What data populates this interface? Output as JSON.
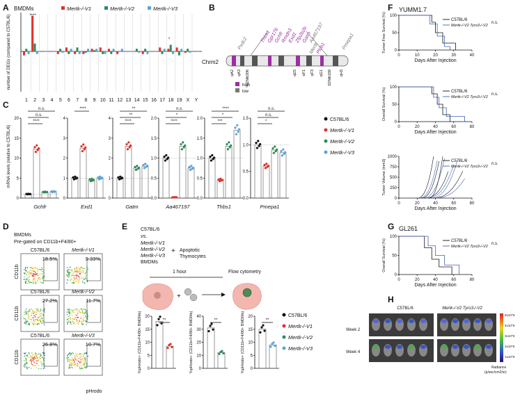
{
  "panels": {
    "A": "A",
    "B": "B",
    "C": "C",
    "D": "D",
    "E": "E",
    "F": "F",
    "G": "G",
    "H": "H"
  },
  "colors": {
    "wt": "#111111",
    "v1": "#e0302a",
    "v2": "#2e8b57",
    "v3": "#5ba3d9",
    "purple": "#9b2fa0",
    "gray": "#777777"
  },
  "legend": {
    "wt": "C57BL/6",
    "v1": "Mertk-/-V1",
    "v2": "Mertk-/-V2",
    "v3": "Mertk-/-V3"
  },
  "panelA": {
    "title": "BMDMs",
    "ylabel": "number of DEGs (compared to C57BL/6)",
    "chart_data": {
      "type": "bar",
      "title": "BMDMs",
      "ylabel": "number of DEGs (compared to C57BL/6)",
      "categories": [
        "1",
        "2",
        "3",
        "4",
        "5",
        "6",
        "7",
        "8",
        "9",
        "10",
        "11",
        "12",
        "13",
        "14",
        "15",
        "16",
        "17",
        "18",
        "19",
        "X",
        "Y"
      ],
      "series": [
        {
          "name": "Mertk-/-V1",
          "values": [
            -3,
            27,
            0,
            0,
            -2,
            3,
            -2,
            -2,
            2,
            3,
            2,
            -2,
            0,
            0,
            -2,
            0,
            3,
            2,
            3,
            -1,
            0
          ]
        },
        {
          "name": "Mertk-/-V2",
          "values": [
            2,
            6,
            0,
            0,
            2,
            -2,
            3,
            -1,
            1,
            -2,
            -2,
            0,
            0,
            2,
            2,
            0,
            -2,
            5,
            -3,
            2,
            0
          ]
        },
        {
          "name": "Mertk-/-V3",
          "values": [
            -2,
            -2,
            0,
            0,
            -1,
            2,
            -2,
            2,
            2,
            -2,
            2,
            2,
            0,
            -1,
            -2,
            0,
            2,
            -2,
            2,
            -1,
            0
          ]
        }
      ],
      "annotations": [
        "****",
        "*"
      ]
    }
  },
  "panelB": {
    "chrom": "Chrm2",
    "genes_top": [
      "Pxdc2",
      "Thbs1",
      "Gpr176",
      "Gchfr",
      "Rmdn3",
      "Exd1",
      "Zfp2b2b",
      "Gatm",
      "Aa467197",
      "Mertk",
      "Plcb1",
      "Pmepa1"
    ],
    "bands": [
      "qA2",
      "qA3",
      "D2Mit206",
      "qE5",
      "qF1",
      "qF3",
      "qG1",
      "D2Mit168",
      "qH3"
    ],
    "legend": [
      "high",
      "low"
    ]
  },
  "panelC": {
    "ylabel": "mRNA levels (relative to C57BL/6)",
    "genes": [
      "Gchfr",
      "Exd1",
      "Gatm",
      "Aa467197",
      "Thbs1",
      "Pmepa1"
    ],
    "legend_title": "",
    "chart_data": [
      {
        "type": "bar",
        "gene": "Gchfr",
        "ylim": [
          0,
          20
        ],
        "ticks": [
          "0",
          "5",
          "10",
          "15",
          "20"
        ],
        "values": [
          1,
          12.3,
          1.5,
          1.6
        ],
        "sig": [
          "n.s.",
          "n.s.",
          "****"
        ]
      },
      {
        "type": "bar",
        "gene": "Exd1",
        "ylim": [
          0,
          4
        ],
        "ticks": [
          "0",
          "1",
          "2",
          "3",
          "4"
        ],
        "values": [
          1,
          2.5,
          0.9,
          1.0
        ],
        "sig": [
          "****"
        ]
      },
      {
        "type": "bar",
        "gene": "Gatm",
        "ylim": [
          0,
          4
        ],
        "ticks": [
          "0",
          "1",
          "2",
          "3",
          "4"
        ],
        "values": [
          1,
          2.6,
          1.5,
          1.6
        ],
        "sig": [
          "**",
          "**",
          "****"
        ]
      },
      {
        "type": "bar",
        "gene": "Aa467197",
        "ylim": [
          0,
          2
        ],
        "ticks": [
          "0.0",
          "0.5",
          "1.0",
          "1.5",
          "2.0"
        ],
        "values": [
          1,
          0.02,
          1.3,
          0.75
        ],
        "sig": [
          "n.s.",
          "*",
          "****"
        ]
      },
      {
        "type": "bar",
        "gene": "Thbs1",
        "ylim": [
          0,
          2
        ],
        "ticks": [
          "0.0",
          "0.5",
          "1.0",
          "1.5",
          "2.0"
        ],
        "values": [
          1,
          0.45,
          1.3,
          1.7
        ],
        "sig": [
          "****",
          "*",
          "***"
        ]
      },
      {
        "type": "bar",
        "gene": "Pmepa1",
        "ylim": [
          0,
          1.5
        ],
        "ticks": [
          "0.0",
          "0.5",
          "1.0",
          "1.5"
        ],
        "values": [
          1,
          0.6,
          0.9,
          0.85
        ],
        "sig": [
          "n.s.",
          "n.s.",
          "*"
        ]
      }
    ]
  },
  "panelD": {
    "title1": "BMDMs",
    "title2": "Pre-gated on CD11b+F4/80+",
    "ylabel": "CD11b",
    "xlabel": "pHrodo",
    "plots": [
      {
        "label": "C57BL/6",
        "pct": "18.5%"
      },
      {
        "label": "Mertk-/-V1",
        "pct": "9.33%"
      },
      {
        "label": "C57BL/6",
        "pct": "27.2%"
      },
      {
        "label": "Mertk-/-V2",
        "pct": "11.7%"
      },
      {
        "label": "C57BL/6",
        "pct": "26.8%"
      },
      {
        "label": "Mertk-/-V3",
        "pct": "10.7%"
      }
    ]
  },
  "panelE": {
    "lines": [
      "C57BL/6",
      "vs.",
      "Mertk-/-V1",
      "Mertk-/-V2",
      "Mertk-/-V3",
      "BMDMs"
    ],
    "plus": "+",
    "apoptotic": "Apoptotic",
    "thymocytes": "Thymocytes",
    "time": "1 hour",
    "flow": "Flow cytometry",
    "ylabel": "%pHrodo+ (CD11b+F4/80+ BMDMs)",
    "chart_data": [
      {
        "type": "bar",
        "ylim": [
          0,
          20
        ],
        "ticks": [
          "0",
          "5",
          "10",
          "15",
          "20"
        ],
        "values": [
          18,
          8.5
        ],
        "sig": "**"
      },
      {
        "type": "bar",
        "ylim": [
          0,
          40
        ],
        "ticks": [
          "0",
          "10",
          "20",
          "30",
          "40"
        ],
        "values": [
          31,
          12
        ],
        "sig": "**"
      },
      {
        "type": "bar",
        "ylim": [
          0,
          20
        ],
        "ticks": [
          "0",
          "5",
          "10",
          "15",
          "20"
        ],
        "values": [
          15,
          9
        ],
        "sig": "**"
      }
    ]
  },
  "panelF": {
    "title": "YUMM1.7",
    "leg1": "C57BL/6",
    "leg2": "Mertk-/-V2 Tyro3-/-V2",
    "ns": "n.s.",
    "xlabel": "Days After Injection",
    "y1": "Tumor-Free Survival (%)",
    "y2": "Overall Survival (%)",
    "y3": "Tumor Volume (mm3)",
    "chart_data": [
      {
        "type": "line",
        "ylabel": "Tumor-Free Survival (%)",
        "xlim": [
          0,
          40
        ],
        "ylim": [
          0,
          100
        ]
      },
      {
        "type": "line",
        "ylabel": "Overall Survival (%)",
        "xlim": [
          0,
          80
        ],
        "ylim": [
          0,
          100
        ]
      },
      {
        "type": "line",
        "ylabel": "Tumor Volume (mm3)",
        "xlim": [
          0,
          80
        ],
        "ylim": [
          0,
          1000
        ]
      }
    ]
  },
  "panelG": {
    "title": "GL261",
    "leg1": "C57BL/6",
    "leg2": "Mertk-/-V2 Tyro3-/-V2",
    "ns": "n.s.",
    "ylabel": "Overall Survival (%)",
    "xlabel": "Days After Injection",
    "chart_data": {
      "type": "line",
      "xlim": [
        0,
        80
      ],
      "ylim": [
        0,
        100
      ]
    }
  },
  "panelH": {
    "left": "C57BL/6",
    "right": "Mertk-/-V2 Tyro3-/-V2",
    "week2": "Week 2",
    "week4": "Week 4",
    "scale": [
      "6x10^6",
      "4x10^6",
      "3x10^6",
      "2x10^6",
      "1x10^6"
    ],
    "unit1": "Radiance",
    "unit2": "(p/sec/cm2/sr)"
  }
}
